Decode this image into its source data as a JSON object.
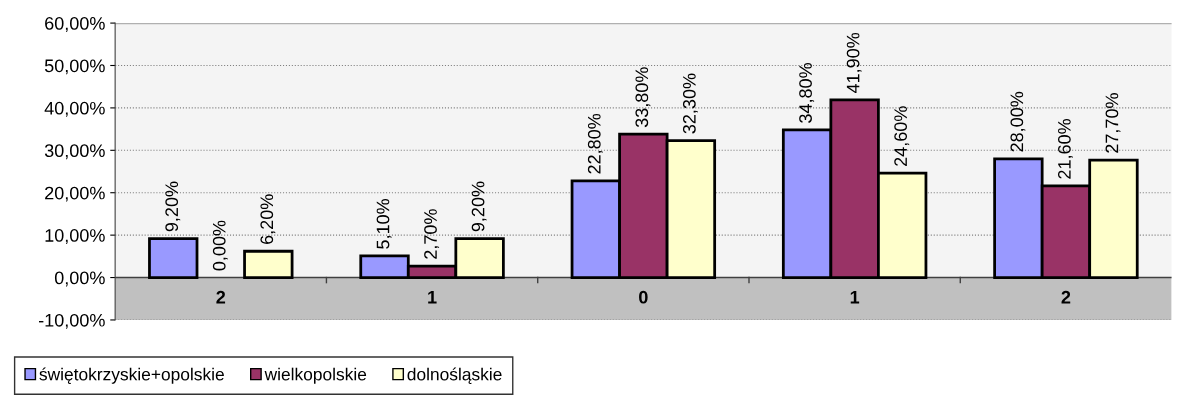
{
  "chart_data": {
    "type": "bar",
    "categories": [
      "2",
      "1",
      "0",
      "1",
      "2"
    ],
    "series": [
      {
        "name": "świętokrzyskie+opolskie",
        "color": "#9999ff",
        "values": [
          9.2,
          5.1,
          22.8,
          34.8,
          28.0
        ],
        "value_labels": [
          "9,20%",
          "5,10%",
          "22,80%",
          "34,80%",
          "28,00%"
        ]
      },
      {
        "name": "wielkopolskie",
        "color": "#993366",
        "values": [
          0.0,
          2.7,
          33.8,
          41.9,
          21.6
        ],
        "value_labels": [
          "0,00%",
          "2,70%",
          "33,80%",
          "41,90%",
          "21,60%"
        ]
      },
      {
        "name": "dolnośląskie",
        "color": "#ffffcc",
        "values": [
          6.2,
          9.2,
          32.3,
          24.6,
          27.7
        ],
        "value_labels": [
          "6,20%",
          "9,20%",
          "32,30%",
          "24,60%",
          "27,70%"
        ]
      }
    ],
    "ylim": [
      -10,
      60
    ],
    "yticks": [
      {
        "value": -10,
        "label": "-10,00%"
      },
      {
        "value": 0,
        "label": "0,00%"
      },
      {
        "value": 10,
        "label": "10,00%"
      },
      {
        "value": 20,
        "label": "20,00%"
      },
      {
        "value": 30,
        "label": "30,00%"
      },
      {
        "value": 40,
        "label": "40,00%"
      },
      {
        "value": 50,
        "label": "50,00%"
      },
      {
        "value": 60,
        "label": "60,00%"
      }
    ],
    "bands": [
      {
        "axis": "y",
        "from": -10,
        "to": 0,
        "color": "#c0c0c0"
      }
    ],
    "grid": "y",
    "legend": "bottom left"
  }
}
